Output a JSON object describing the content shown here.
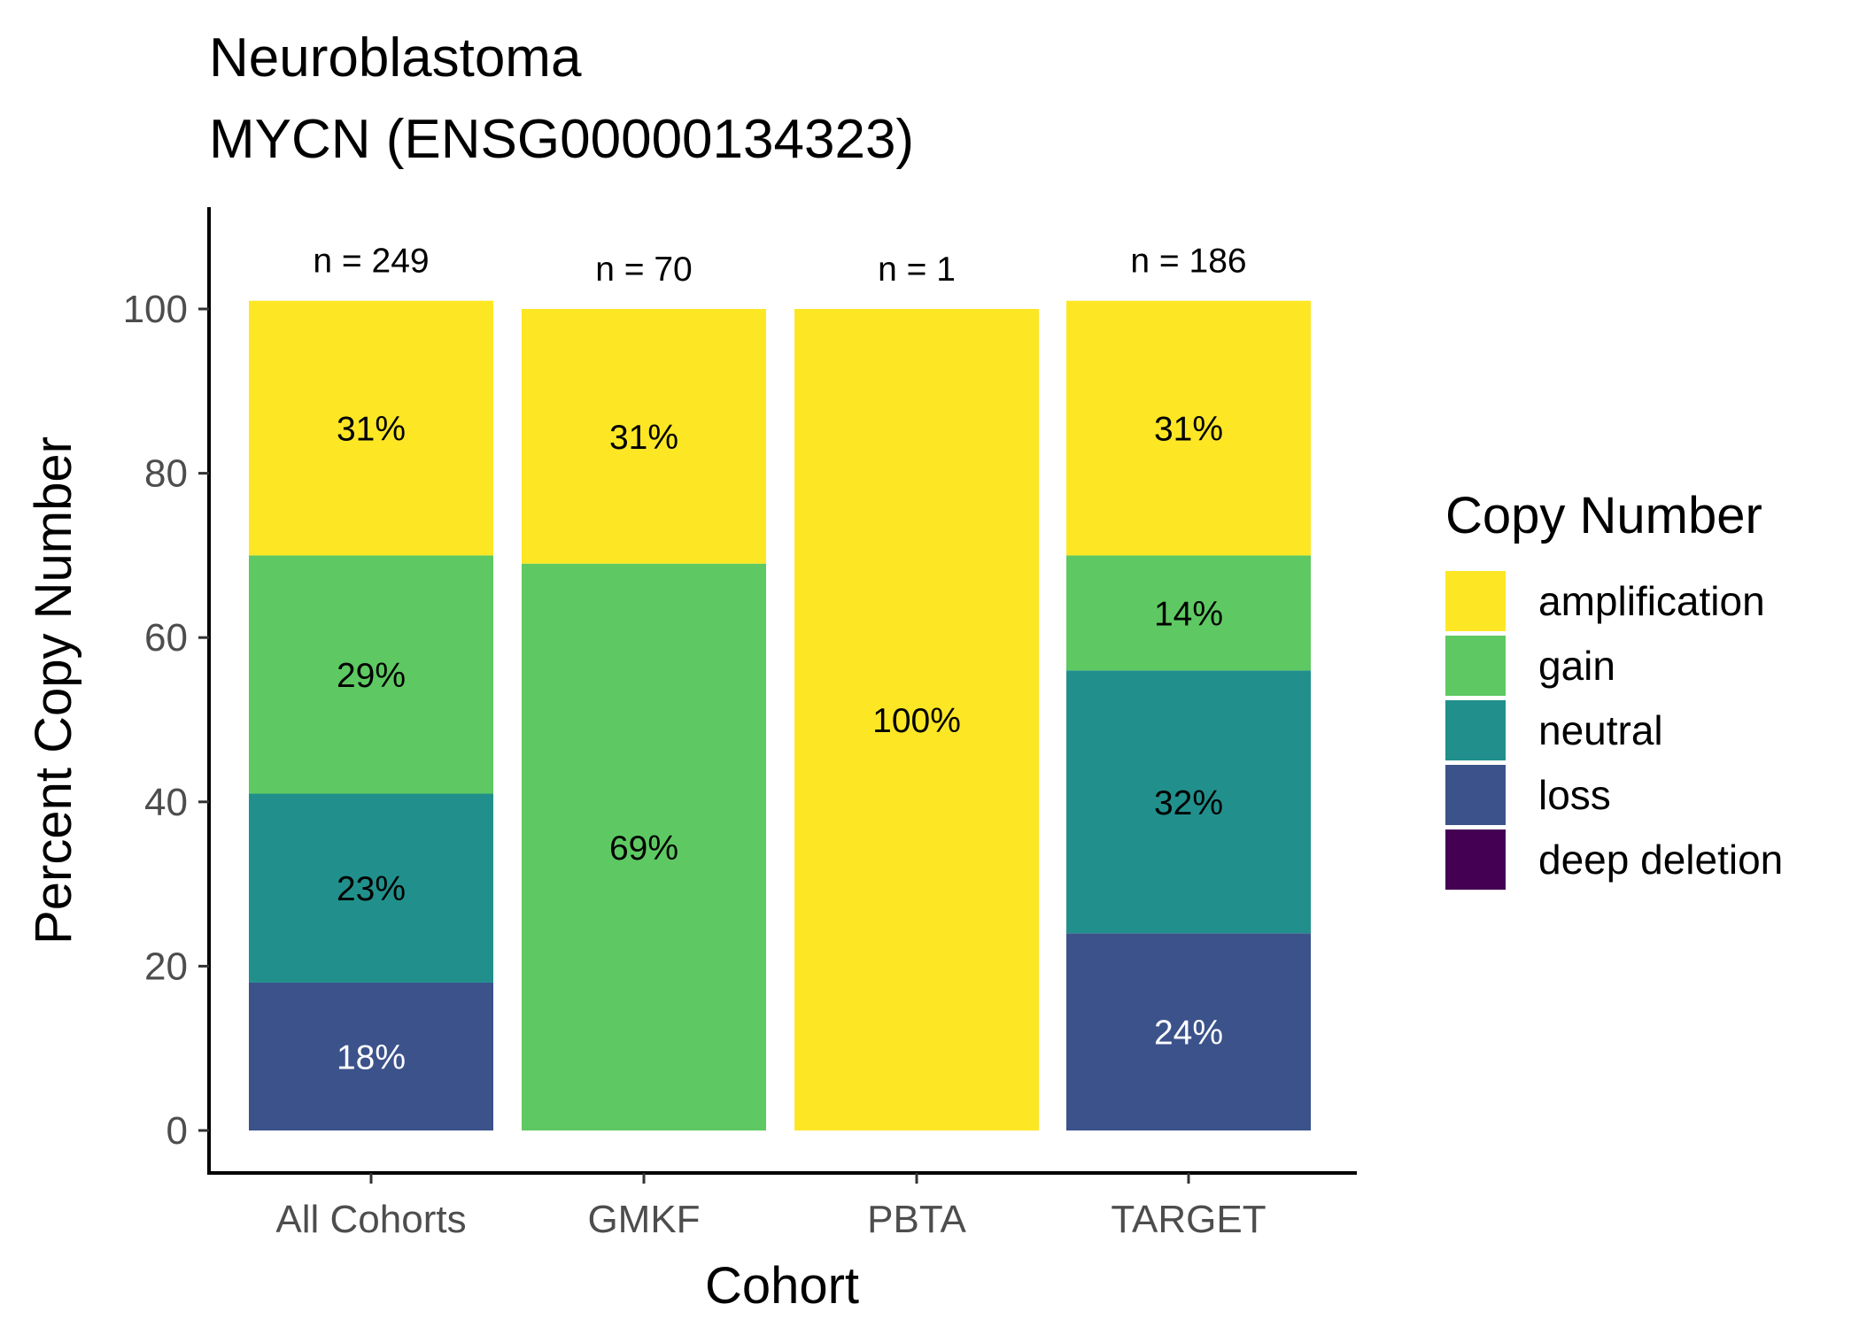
{
  "chart_data": {
    "type": "bar",
    "stacked": true,
    "title": [
      "Neuroblastoma",
      "MYCN (ENSG00000134323)"
    ],
    "xlabel": "Cohort",
    "ylabel": "Percent Copy Number",
    "ylim": [
      0,
      110
    ],
    "yticks": [
      0,
      20,
      40,
      60,
      80,
      100
    ],
    "categories": [
      "All Cohorts",
      "GMKF",
      "PBTA",
      "TARGET"
    ],
    "n_labels": [
      "n = 249",
      "n = 70",
      "n = 1",
      "n = 186"
    ],
    "grid": false,
    "legend": {
      "title": "Copy Number",
      "position": "right",
      "entries": [
        "amplification",
        "gain",
        "neutral",
        "loss",
        "deep deletion"
      ]
    },
    "series": [
      {
        "name": "loss",
        "color": "#3b528b",
        "label_color": "#ffffff",
        "values": [
          18,
          0,
          0,
          24
        ],
        "labels": [
          "18%",
          "",
          "",
          "24%"
        ]
      },
      {
        "name": "neutral",
        "color": "#21908c",
        "label_color": "#000000",
        "values": [
          23,
          0,
          0,
          32
        ],
        "labels": [
          "23%",
          "",
          "",
          "32%"
        ]
      },
      {
        "name": "gain",
        "color": "#5ec962",
        "label_color": "#000000",
        "values": [
          29,
          69,
          0,
          14
        ],
        "labels": [
          "29%",
          "69%",
          "",
          "14%"
        ]
      },
      {
        "name": "amplification",
        "color": "#fde725",
        "label_color": "#000000",
        "values": [
          31,
          31,
          100,
          31
        ],
        "labels": [
          "31%",
          "31%",
          "100%",
          "31%"
        ]
      },
      {
        "name": "deep deletion",
        "color": "#440154",
        "label_color": "#ffffff",
        "values": [
          0,
          0,
          0,
          0
        ],
        "labels": [
          "",
          "",
          "",
          ""
        ]
      }
    ]
  }
}
